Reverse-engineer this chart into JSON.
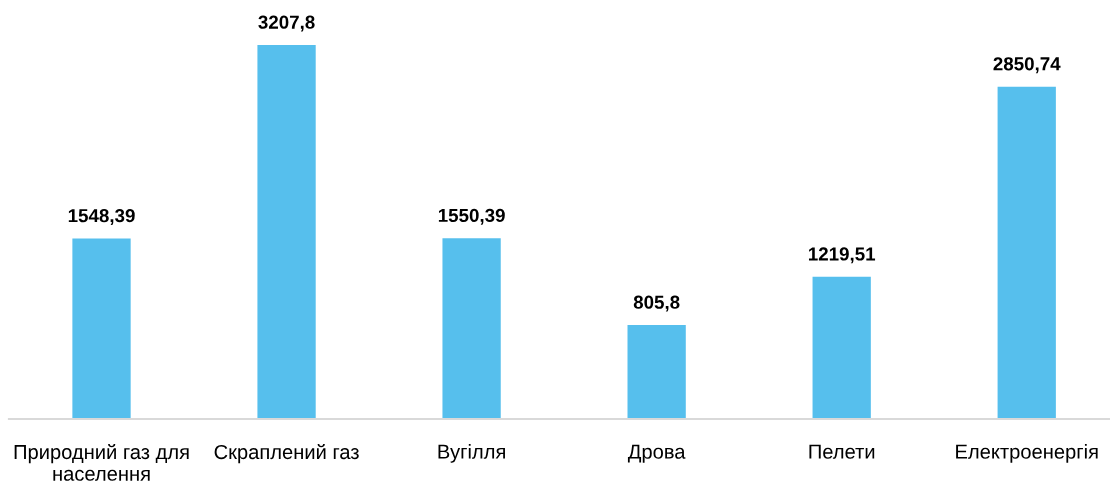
{
  "chart_data": {
    "type": "bar",
    "categories": [
      "Природний газ для\nнаселення",
      "Скраплений газ",
      "Вугілля",
      "Дрова",
      "Пелети",
      "Електроенергія"
    ],
    "values": [
      1548.39,
      3207.8,
      1550.39,
      805.8,
      1219.51,
      2850.74
    ],
    "value_labels": [
      "1548,39",
      "3207,8",
      "1550,39",
      "805,8",
      "1219,51",
      "2850,74"
    ],
    "color": "#56bfed",
    "tick_labels": "x"
  }
}
